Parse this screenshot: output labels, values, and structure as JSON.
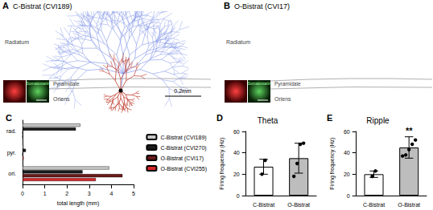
{
  "morphology_panels": [
    {
      "panel": "A",
      "title": "C-Bistrat (CVI189)",
      "layers": [
        "Radiatum",
        "Pyramidale",
        "Oriens"
      ],
      "scale_bar": "0.2mm",
      "inset_label": "Somatostatin"
    },
    {
      "panel": "B",
      "title": "O-Bistrat (CVI17)",
      "layers": [
        "Radiatum",
        "Pyramidale",
        "Oriens"
      ],
      "inset_label": "Somatostatin"
    }
  ],
  "chart_data": [
    {
      "panel": "C",
      "type": "bar",
      "orientation": "horizontal",
      "categories": [
        "rad.",
        "pyr.",
        "ori."
      ],
      "series": [
        {
          "name": "C-Bistrat (CVI189)",
          "color": "#c8c8c8",
          "values": [
            2.6,
            0.05,
            3.9
          ]
        },
        {
          "name": "C-Bistrat (CVI270)",
          "color": "#1a1a1a",
          "values": [
            2.4,
            0.15,
            2.7
          ]
        },
        {
          "name": "O-Bistrat (CVI17)",
          "color": "#6b1a1a",
          "values": [
            0,
            0,
            4.5
          ]
        },
        {
          "name": "O-Bistrat (CVI255)",
          "color": "#d62728",
          "values": [
            0,
            0.05,
            3.3
          ]
        }
      ],
      "xlabel": "total length (mm)",
      "xlim": [
        0,
        5
      ],
      "xticks": [
        0,
        1,
        2,
        3,
        4,
        5
      ],
      "legend": "right"
    },
    {
      "panel": "D",
      "type": "bar",
      "title": "Theta",
      "categories": [
        "C-Bistrat",
        "O-Bistrat"
      ],
      "values": [
        27,
        35
      ],
      "errors": [
        7,
        14
      ],
      "points": [
        [
          20,
          33
        ],
        [
          18,
          30,
          48,
          49
        ]
      ],
      "colors": [
        "#ffffff",
        "#bdbdbd"
      ],
      "ylabel": "Firing frequency (Hz)",
      "ylim": [
        0,
        60
      ],
      "yticks": [
        0,
        20,
        40,
        60
      ]
    },
    {
      "panel": "E",
      "type": "bar",
      "title": "Ripple",
      "categories": [
        "C-Bistrat",
        "O-Bistrat"
      ],
      "values": [
        20,
        45
      ],
      "errors": [
        3,
        10
      ],
      "points": [
        [
          18,
          23
        ],
        [
          37,
          38,
          43,
          48,
          52
        ]
      ],
      "colors": [
        "#ffffff",
        "#bdbdbd"
      ],
      "ylabel": "Firing frequency (Hz)",
      "ylim": [
        0,
        60
      ],
      "yticks": [
        0,
        20,
        40,
        60
      ],
      "annotations": [
        {
          "text": "**",
          "category": "O-Bistrat"
        }
      ]
    }
  ]
}
